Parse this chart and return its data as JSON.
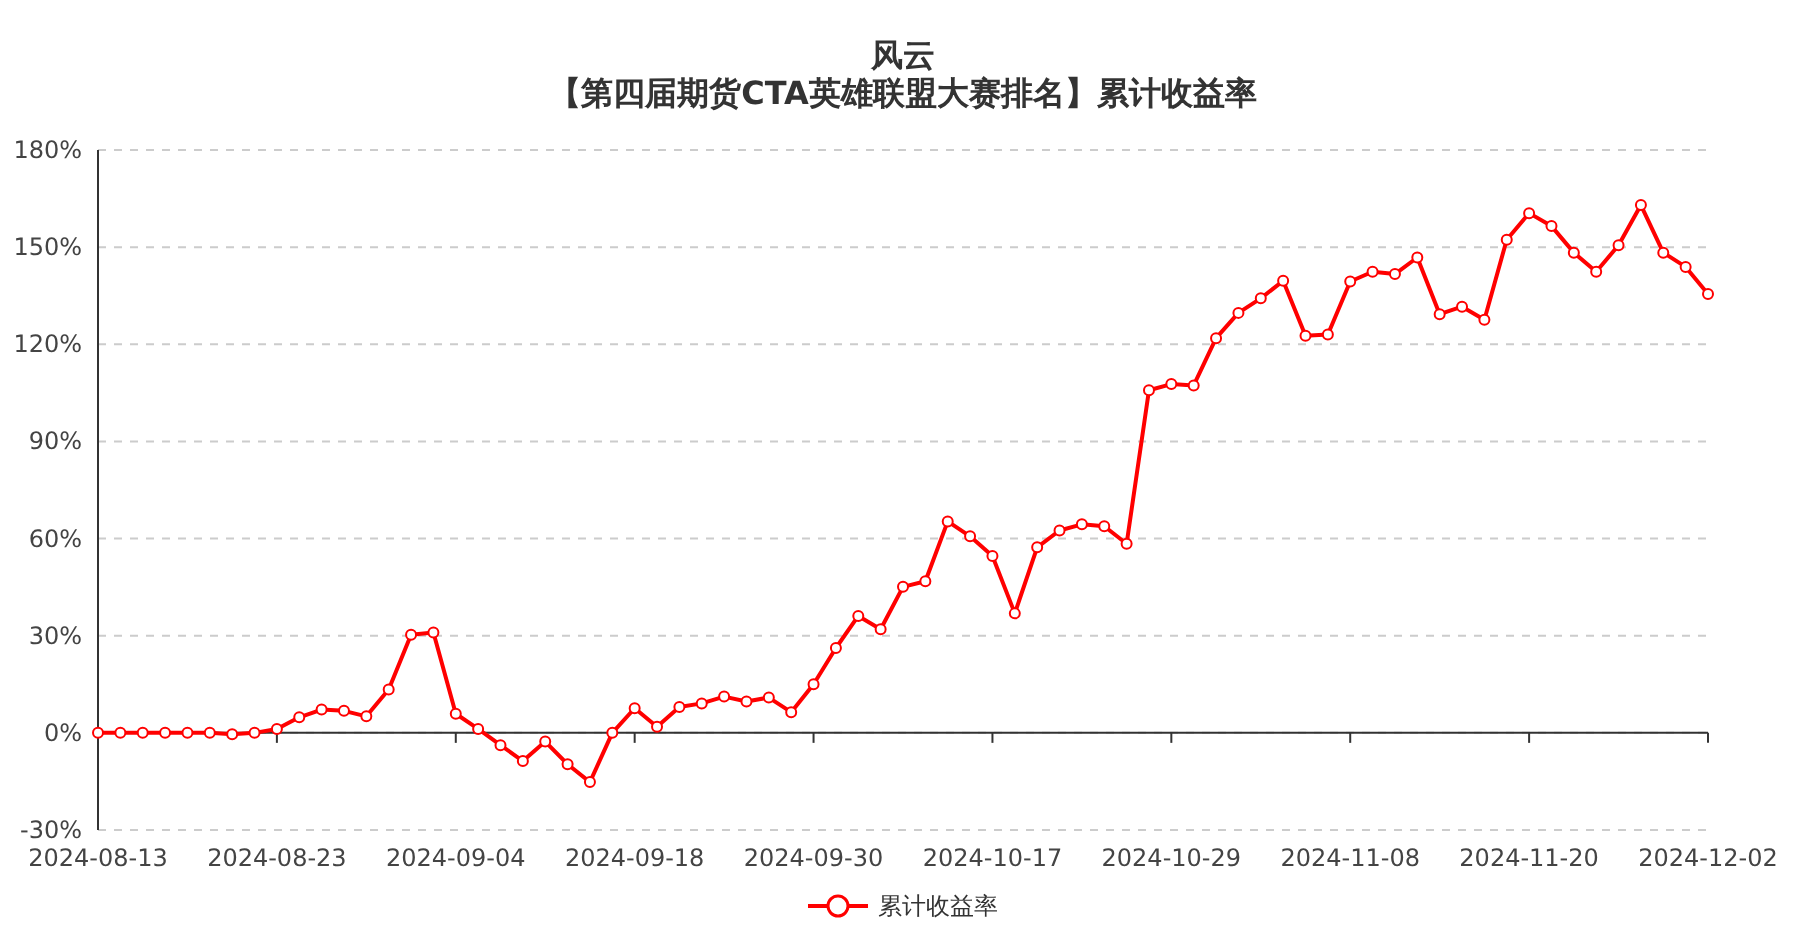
{
  "chart_data": {
    "type": "line",
    "title": "风云",
    "subtitle": "【第四届期货CTA英雄联盟大赛排名】累计收益率",
    "categories": [
      "2024-08-13",
      null,
      null,
      null,
      null,
      null,
      null,
      null,
      "2024-08-23",
      null,
      null,
      null,
      null,
      null,
      null,
      null,
      "2024-09-04",
      null,
      null,
      null,
      null,
      null,
      null,
      null,
      "2024-09-18",
      null,
      null,
      null,
      null,
      null,
      null,
      null,
      "2024-09-30",
      null,
      null,
      null,
      null,
      null,
      null,
      null,
      "2024-10-17",
      null,
      null,
      null,
      null,
      null,
      null,
      null,
      "2024-10-29",
      null,
      null,
      null,
      null,
      null,
      null,
      null,
      "2024-11-08",
      null,
      null,
      null,
      null,
      null,
      null,
      null,
      "2024-11-20",
      null,
      null,
      null,
      null,
      null,
      null,
      null,
      "2024-12-02"
    ],
    "series": [
      {
        "name": "累计收益率",
        "color": "#ff0000",
        "values": [
          0,
          0,
          0,
          0,
          0,
          0,
          -0.4,
          0,
          1.2,
          4.8,
          7.2,
          6.8,
          5.1,
          13.4,
          30.3,
          31.0,
          5.9,
          1.2,
          -3.8,
          -8.7,
          -2.7,
          -9.7,
          -15.2,
          0,
          7.6,
          1.9,
          8.0,
          9.1,
          11.2,
          9.7,
          10.9,
          6.4,
          15.0,
          26.2,
          36.1,
          32.0,
          45.1,
          46.8,
          65.3,
          60.7,
          54.6,
          36.9,
          57.3,
          62.5,
          64.4,
          63.8,
          58.4,
          105.8,
          107.7,
          107.3,
          121.9,
          129.7,
          134.2,
          139.6,
          122.6,
          123.0,
          139.4,
          142.4,
          141.7,
          146.8,
          129.3,
          131.6,
          127.6,
          152.3,
          160.5,
          156.5,
          148.3,
          142.4,
          150.6,
          163.0,
          148.3,
          143.9,
          135.5
        ]
      }
    ],
    "ylim": [
      -30,
      180
    ],
    "yticks": [
      {
        "value": -30,
        "label": "-30%"
      },
      {
        "value": 0,
        "label": "0%"
      },
      {
        "value": 30,
        "label": "30%"
      },
      {
        "value": 60,
        "label": "60%"
      },
      {
        "value": 90,
        "label": "90%"
      },
      {
        "value": 120,
        "label": "120%"
      },
      {
        "value": 150,
        "label": "150%"
      },
      {
        "value": 180,
        "label": "180%"
      }
    ],
    "grid": "y",
    "legend": "bottom",
    "marker": "circle",
    "line_style": "solid"
  }
}
